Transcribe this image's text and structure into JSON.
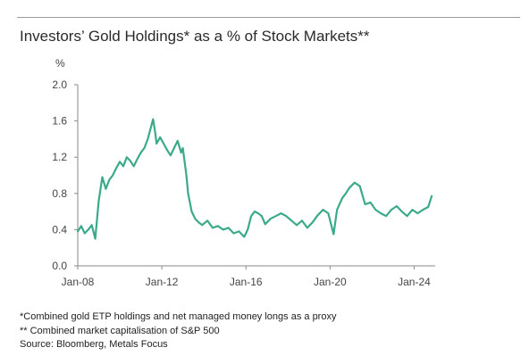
{
  "title": "Investors’ Gold Holdings* as a % of Stock Markets**",
  "footnotes": [
    "*Combined gold ETP holdings and net managed money longs as a proxy",
    "** Combined market capitalisation of S&P 500",
    "Source: Bloomberg, Metals Focus"
  ],
  "colors": {
    "line": "#3aaa8a",
    "axis": "#8a8a8a",
    "text": "#444444"
  },
  "chart_data": {
    "type": "line",
    "title": "Investors’ Gold Holdings* as a % of Stock Markets**",
    "ylabel": "%",
    "xlabel": "",
    "x_range": [
      "2008-01",
      "2025-01"
    ],
    "ylim": [
      0,
      2.0
    ],
    "y_ticks": [
      "0.0",
      "0.4",
      "0.8",
      "1.2",
      "1.6",
      "2.0"
    ],
    "x_ticks": [
      "Jan-08",
      "Jan-12",
      "Jan-16",
      "Jan-20",
      "Jan-24"
    ],
    "grid": false,
    "series": [
      {
        "x": [
          "2008-01",
          "2008-03",
          "2008-05",
          "2008-07",
          "2008-09",
          "2008-11",
          "2009-01",
          "2009-03",
          "2009-05",
          "2009-07",
          "2009-09",
          "2009-11",
          "2010-01",
          "2010-03",
          "2010-05",
          "2010-07",
          "2010-09",
          "2010-11",
          "2011-01",
          "2011-03",
          "2011-05",
          "2011-07",
          "2011-08",
          "2011-09",
          "2011-10",
          "2011-12",
          "2012-02",
          "2012-04",
          "2012-06",
          "2012-08",
          "2012-10",
          "2012-12",
          "2013-01",
          "2013-02",
          "2013-03",
          "2013-04",
          "2013-06",
          "2013-08",
          "2013-10",
          "2013-12",
          "2014-03",
          "2014-06",
          "2014-09",
          "2014-12",
          "2015-03",
          "2015-06",
          "2015-09",
          "2015-12",
          "2016-02",
          "2016-04",
          "2016-06",
          "2016-08",
          "2016-10",
          "2016-12",
          "2017-03",
          "2017-06",
          "2017-09",
          "2017-12",
          "2018-03",
          "2018-06",
          "2018-09",
          "2018-12",
          "2019-03",
          "2019-06",
          "2019-09",
          "2019-12",
          "2020-03",
          "2020-05",
          "2020-08",
          "2020-10",
          "2020-12",
          "2021-03",
          "2021-06",
          "2021-09",
          "2021-12",
          "2022-03",
          "2022-06",
          "2022-09",
          "2022-12",
          "2023-03",
          "2023-06",
          "2023-09",
          "2023-12",
          "2024-03",
          "2024-06",
          "2024-09",
          "2024-11"
        ],
        "y": [
          0.38,
          0.44,
          0.36,
          0.4,
          0.45,
          0.3,
          0.72,
          0.98,
          0.85,
          0.95,
          1.0,
          1.08,
          1.15,
          1.1,
          1.2,
          1.16,
          1.1,
          1.18,
          1.25,
          1.3,
          1.4,
          1.55,
          1.62,
          1.5,
          1.35,
          1.42,
          1.35,
          1.28,
          1.22,
          1.3,
          1.38,
          1.25,
          1.3,
          1.15,
          1.0,
          0.8,
          0.6,
          0.52,
          0.48,
          0.45,
          0.5,
          0.42,
          0.44,
          0.4,
          0.42,
          0.36,
          0.38,
          0.32,
          0.4,
          0.55,
          0.6,
          0.58,
          0.55,
          0.46,
          0.52,
          0.55,
          0.58,
          0.55,
          0.5,
          0.45,
          0.5,
          0.42,
          0.48,
          0.56,
          0.62,
          0.58,
          0.35,
          0.62,
          0.75,
          0.8,
          0.86,
          0.92,
          0.88,
          0.68,
          0.7,
          0.62,
          0.58,
          0.55,
          0.62,
          0.66,
          0.6,
          0.55,
          0.62,
          0.58,
          0.62,
          0.65,
          0.77
        ]
      }
    ]
  }
}
